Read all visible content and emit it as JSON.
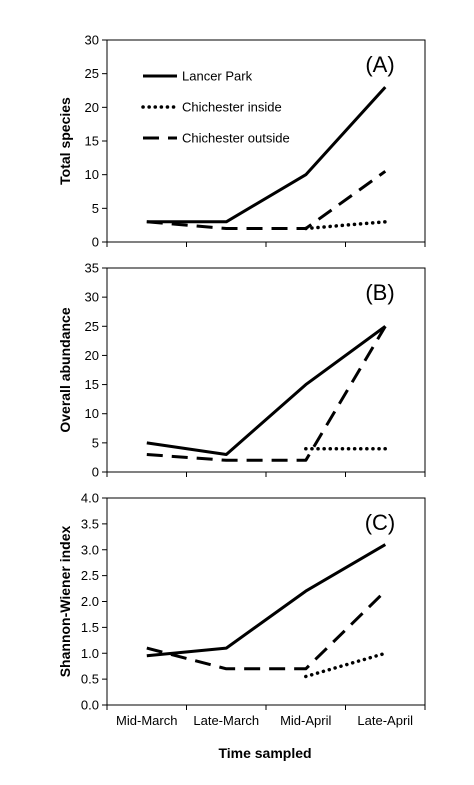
{
  "chart_data": [
    {
      "type": "line",
      "panel_label": "(A)",
      "ylabel": "Total species",
      "ylim": [
        0,
        30
      ],
      "yticks": [
        "0",
        "5",
        "10",
        "15",
        "20",
        "25",
        "30"
      ],
      "categories": [
        "Mid-March",
        "Late-March",
        "Mid-April",
        "Late-April"
      ],
      "legend_position": "top-left",
      "series": [
        {
          "name": "Lancer Park",
          "style": "solid",
          "points": [
            [
              0,
              3
            ],
            [
              1,
              3
            ],
            [
              2,
              10
            ],
            [
              3,
              23
            ]
          ]
        },
        {
          "name": "Chichester inside",
          "style": "dotted",
          "points": [
            [
              2,
              2
            ],
            [
              3,
              3
            ]
          ]
        },
        {
          "name": "Chichester outside",
          "style": "dashed",
          "points": [
            [
              0,
              3
            ],
            [
              1,
              2
            ],
            [
              2,
              2
            ],
            [
              3,
              10.5
            ]
          ]
        }
      ]
    },
    {
      "type": "line",
      "panel_label": "(B)",
      "ylabel": "Overall abundance",
      "ylim": [
        0,
        35
      ],
      "yticks": [
        "0",
        "5",
        "10",
        "15",
        "20",
        "25",
        "30",
        "35"
      ],
      "categories": [
        "Mid-March",
        "Late-March",
        "Mid-April",
        "Late-April"
      ],
      "series": [
        {
          "name": "Lancer Park",
          "style": "solid",
          "points": [
            [
              0,
              5
            ],
            [
              1,
              3
            ],
            [
              2,
              15
            ],
            [
              3,
              25
            ]
          ]
        },
        {
          "name": "Chichester inside",
          "style": "dotted",
          "points": [
            [
              2,
              4
            ],
            [
              3,
              4
            ]
          ]
        },
        {
          "name": "Chichester outside",
          "style": "dashed",
          "points": [
            [
              0,
              3
            ],
            [
              1,
              2
            ],
            [
              2,
              2
            ],
            [
              3,
              25
            ]
          ]
        }
      ]
    },
    {
      "type": "line",
      "panel_label": "(C)",
      "ylabel": "Shannon-Wiener index",
      "ylim": [
        0,
        4
      ],
      "yticks": [
        "0.0",
        "0.5",
        "1.0",
        "1.5",
        "2.0",
        "2.5",
        "3.0",
        "3.5",
        "4.0"
      ],
      "categories": [
        "Mid-March",
        "Late-March",
        "Mid-April",
        "Late-April"
      ],
      "series": [
        {
          "name": "Lancer Park",
          "style": "solid",
          "points": [
            [
              0,
              0.95
            ],
            [
              1,
              1.1
            ],
            [
              2,
              2.2
            ],
            [
              3,
              3.1
            ]
          ]
        },
        {
          "name": "Chichester inside",
          "style": "dotted",
          "points": [
            [
              2,
              0.55
            ],
            [
              3,
              1.0
            ]
          ]
        },
        {
          "name": "Chichester outside",
          "style": "dashed",
          "points": [
            [
              0,
              1.1
            ],
            [
              1,
              0.7
            ],
            [
              2,
              0.7
            ],
            [
              3,
              2.2
            ]
          ]
        }
      ]
    }
  ],
  "xlabel": "Time sampled",
  "legend": [
    {
      "name": "Lancer Park",
      "style": "solid"
    },
    {
      "name": "Chichester inside",
      "style": "dotted"
    },
    {
      "name": "Chichester outside",
      "style": "dashed"
    }
  ]
}
